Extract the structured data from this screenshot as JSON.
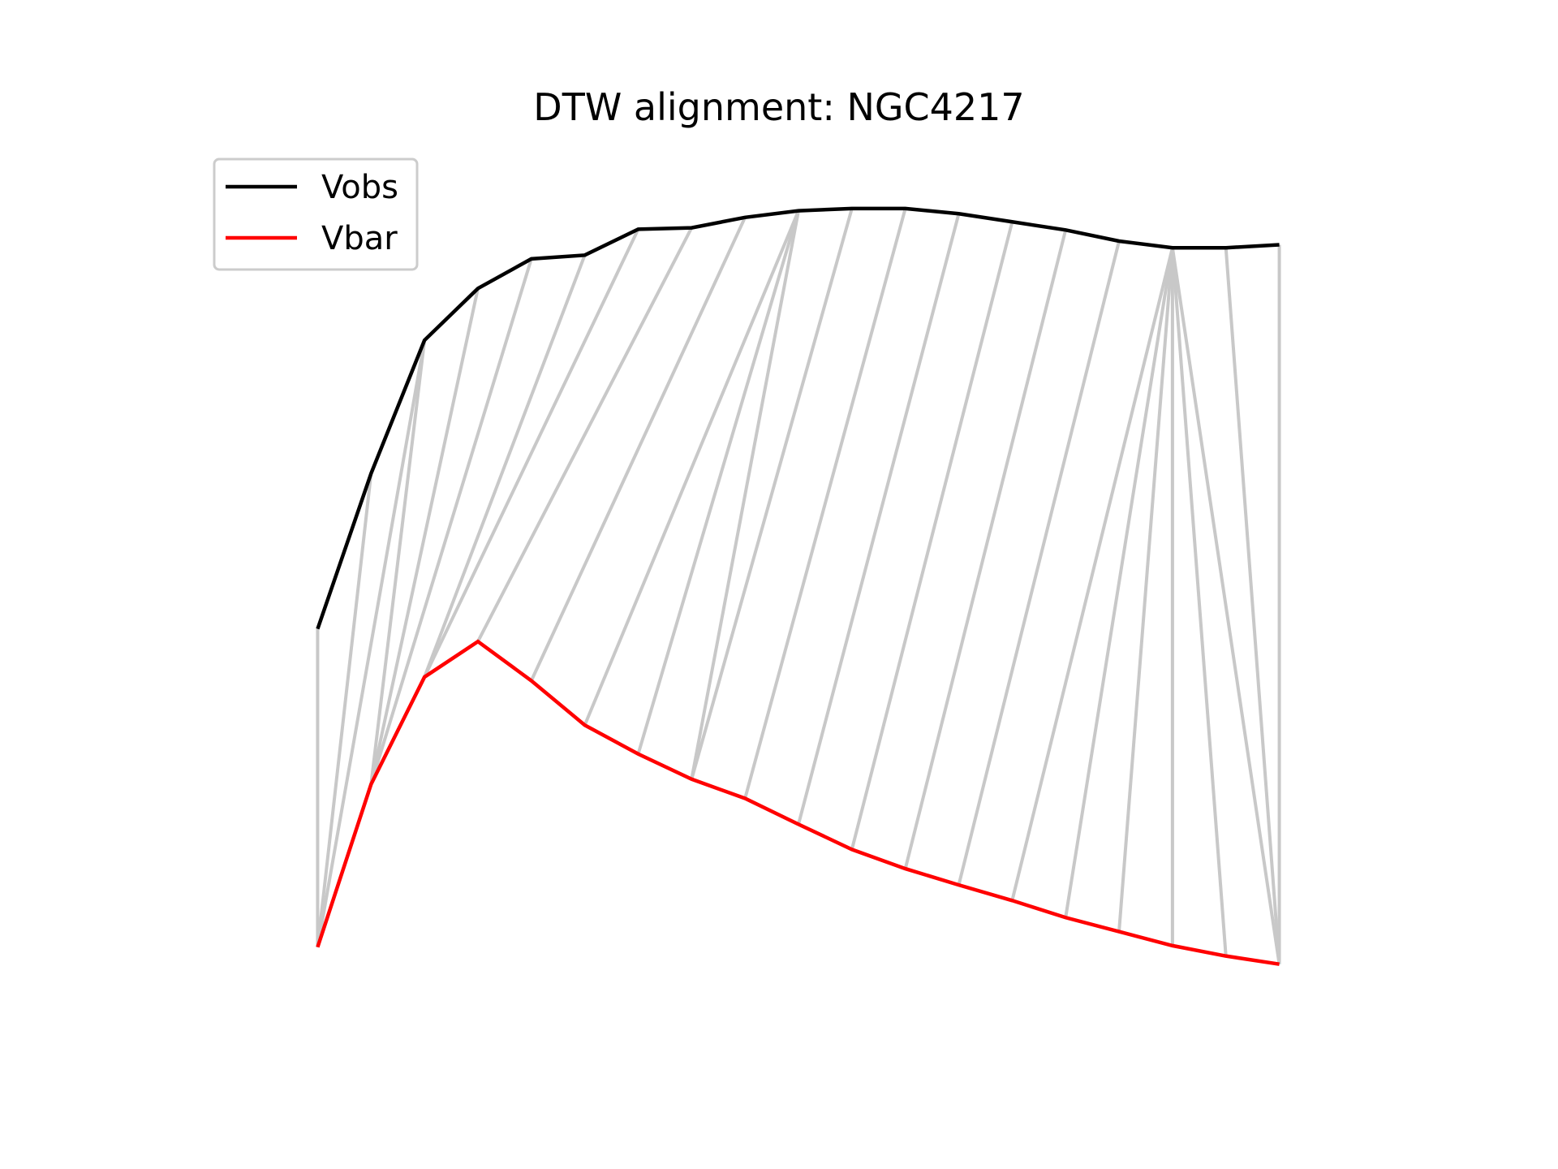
{
  "chart_data": {
    "type": "line",
    "title": "DTW alignment: NGC4217",
    "xlabel": "",
    "ylabel": "",
    "axes_visible": false,
    "grid": false,
    "legend_position": "top-left",
    "x": [
      0,
      1,
      2,
      3,
      4,
      5,
      6,
      7,
      8,
      9,
      10,
      11,
      12,
      13,
      14,
      15,
      16,
      17,
      18
    ],
    "xlim": [
      -2.3,
      20.3
    ],
    "ylim": [
      0.0,
      1.2
    ],
    "series": [
      {
        "name": "Vobs",
        "color": "#000000",
        "values": [
          0.54,
          0.75,
          0.93,
          1.0,
          1.04,
          1.045,
          1.08,
          1.082,
          1.096,
          1.105,
          1.108,
          1.108,
          1.101,
          1.09,
          1.079,
          1.064,
          1.055,
          1.055,
          1.059
        ]
      },
      {
        "name": "Vbar",
        "color": "#ff0000",
        "values": [
          0.11,
          0.33,
          0.475,
          0.523,
          0.47,
          0.41,
          0.371,
          0.337,
          0.311,
          0.276,
          0.242,
          0.216,
          0.194,
          0.173,
          0.15,
          0.131,
          0.112,
          0.098,
          0.087
        ]
      }
    ],
    "alignment": {
      "color": "#c8c8c8",
      "pairs": [
        [
          0,
          0
        ],
        [
          1,
          0
        ],
        [
          2,
          0
        ],
        [
          2,
          1
        ],
        [
          3,
          1
        ],
        [
          4,
          1
        ],
        [
          5,
          2
        ],
        [
          6,
          2
        ],
        [
          7,
          3
        ],
        [
          8,
          4
        ],
        [
          9,
          5
        ],
        [
          9,
          6
        ],
        [
          9,
          7
        ],
        [
          10,
          7
        ],
        [
          11,
          8
        ],
        [
          12,
          9
        ],
        [
          13,
          10
        ],
        [
          14,
          11
        ],
        [
          15,
          12
        ],
        [
          16,
          13
        ],
        [
          16,
          14
        ],
        [
          16,
          15
        ],
        [
          16,
          16
        ],
        [
          16,
          17
        ],
        [
          16,
          18
        ],
        [
          17,
          18
        ],
        [
          18,
          18
        ]
      ]
    }
  }
}
